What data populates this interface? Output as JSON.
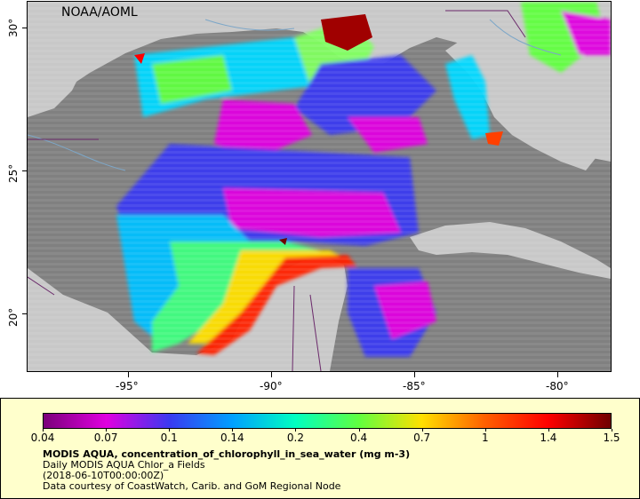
{
  "map": {
    "credit": "NOAA/AOML",
    "lat_labels": [
      "30°",
      "25°",
      "20°"
    ],
    "lon_labels": [
      "-95°",
      "-90°",
      "-85°",
      "-80°"
    ],
    "land_color": "#c8c8c8",
    "nodata_color": "#808080",
    "border_color": "#6b2a6b",
    "river_color": "#7da7c8"
  },
  "legend": {
    "ticks": [
      "0.04",
      "0.07",
      "0.1",
      "0.14",
      "0.2",
      "0.4",
      "0.7",
      "1",
      "1.4",
      "1.5"
    ],
    "palette": [
      "#7a007a",
      "#e000e0",
      "#3a3af0",
      "#00a0ff",
      "#00ffc0",
      "#60ff40",
      "#ffe000",
      "#ff6000",
      "#ff0000",
      "#700000"
    ],
    "title": "MODIS AQUA, concentration_of_chlorophyll_in_sea_water (mg m-3)",
    "line1": "Daily MODIS AQUA Chlor_a Fields",
    "line2": "(2018-06-10T00:00:00Z)",
    "line3": "Data courtesy of CoastWatch, Carib. and GoM Regional Node"
  }
}
